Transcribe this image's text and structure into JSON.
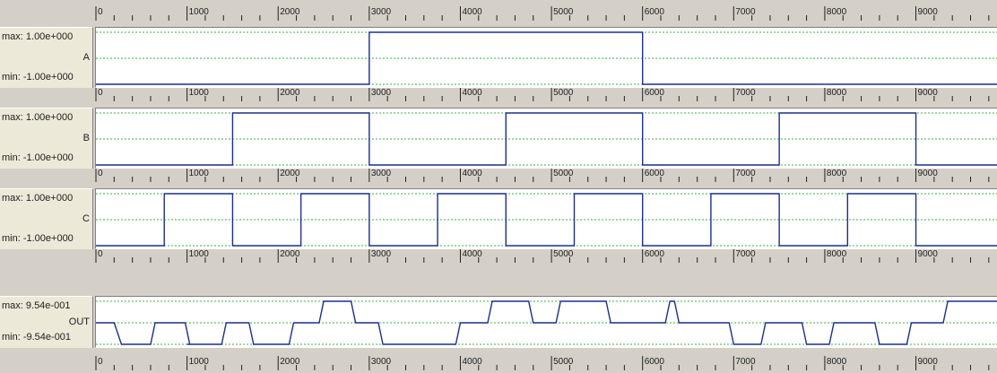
{
  "chart_data": {
    "type": "line",
    "x_axis": {
      "range": [
        0,
        9900
      ],
      "major_ticks": [
        0,
        1000,
        2000,
        3000,
        4000,
        5000,
        6000,
        7000,
        8000,
        9000
      ],
      "tick_labels": [
        "0",
        "1000",
        "2000",
        "3000",
        "4000",
        "5000",
        "6000",
        "7000",
        "8000",
        "9000"
      ],
      "minor_step": 200
    },
    "colors": {
      "signal": "#1c2f8c",
      "zero_line": "#3cb043",
      "background": "#ffffff"
    },
    "series": [
      {
        "name": "A",
        "max_label": "max: 1.00e+000",
        "min_label": "min: -1.00e+000",
        "ylim": [
          -1,
          1
        ],
        "x": [
          0,
          3000,
          3000,
          6000,
          6000,
          9900
        ],
        "y": [
          -1,
          -1,
          1,
          1,
          -1,
          -1
        ]
      },
      {
        "name": "B",
        "max_label": "max: 1.00e+000",
        "min_label": "min: -1.00e+000",
        "ylim": [
          -1,
          1
        ],
        "x": [
          0,
          1500,
          1500,
          3000,
          3000,
          4500,
          4500,
          6000,
          6000,
          7500,
          7500,
          9000,
          9000,
          9900
        ],
        "y": [
          -1,
          -1,
          1,
          1,
          -1,
          -1,
          1,
          1,
          -1,
          -1,
          1,
          1,
          -1,
          -1
        ]
      },
      {
        "name": "C",
        "max_label": "max: 1.00e+000",
        "min_label": "min: -1.00e+000",
        "ylim": [
          -1,
          1
        ],
        "x": [
          0,
          750,
          750,
          1500,
          1500,
          2250,
          2250,
          3000,
          3000,
          3750,
          3750,
          4500,
          4500,
          5250,
          5250,
          6000,
          6000,
          6750,
          6750,
          7500,
          7500,
          8250,
          8250,
          9000,
          9000,
          9900
        ],
        "y": [
          -1,
          -1,
          1,
          1,
          -1,
          -1,
          1,
          1,
          -1,
          -1,
          1,
          1,
          -1,
          -1,
          1,
          1,
          -1,
          -1,
          1,
          1,
          -1,
          -1,
          1,
          1,
          -1,
          -1
        ]
      },
      {
        "name": "OUT",
        "max_label": "max: 9.54e-001",
        "min_label": "min: -9.54e-001",
        "ylim": [
          -0.954,
          0.954
        ],
        "x": [
          0,
          200,
          280,
          600,
          650,
          980,
          1030,
          1000,
          1020,
          1380,
          1430,
          1680,
          1730,
          1760,
          1800,
          2120,
          2170,
          2450,
          2500,
          2800,
          2850,
          3100,
          3150,
          3250,
          3300,
          3950,
          4000,
          4300,
          4350,
          4750,
          4800,
          5050,
          5100,
          5600,
          5650,
          6250,
          6300,
          6350,
          6400,
          6950,
          7000,
          7300,
          7350,
          7750,
          7800,
          8050,
          8100,
          8550,
          8600,
          8900,
          8950,
          9300,
          9350,
          9900
        ],
        "y": [
          0,
          0,
          -0.954,
          -0.954,
          0,
          0,
          -0.954,
          -0.954,
          -0.954,
          -0.954,
          0,
          0,
          -0.954,
          -0.954,
          -0.954,
          -0.954,
          0,
          0,
          0.954,
          0.954,
          0,
          0,
          -0.954,
          -0.954,
          -0.954,
          -0.954,
          0,
          0,
          0.954,
          0.954,
          0,
          0,
          0.954,
          0.954,
          0,
          0,
          0.954,
          0.954,
          0,
          0,
          -0.954,
          -0.954,
          0,
          0,
          -0.954,
          -0.954,
          0,
          0,
          -0.954,
          -0.954,
          0,
          0,
          0.954,
          0.954
        ]
      }
    ]
  }
}
